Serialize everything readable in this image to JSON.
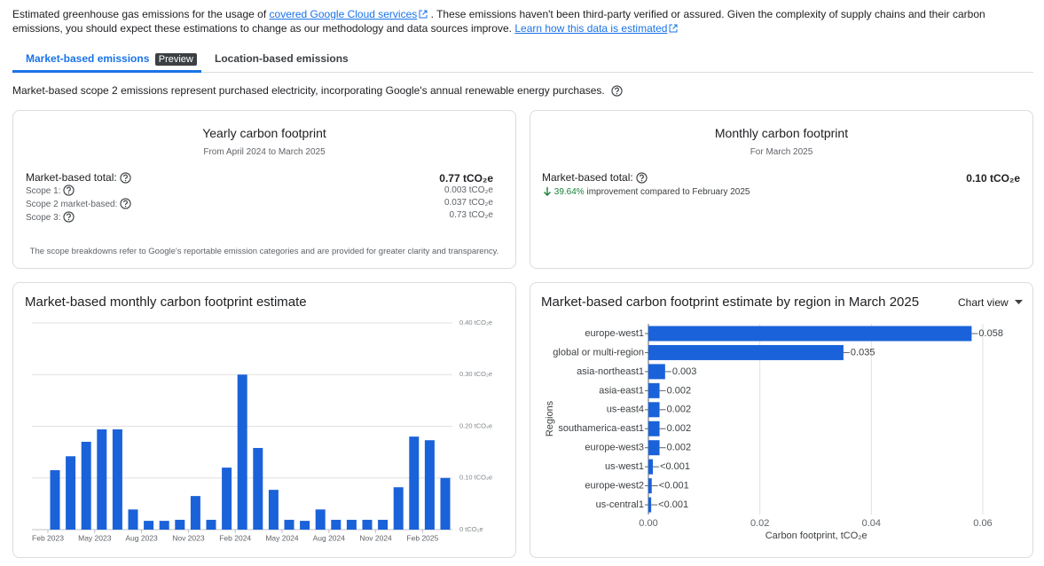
{
  "intro": {
    "text_1": "Estimated greenhouse gas emissions for the usage of",
    "link_1": "covered Google Cloud services",
    "text_2": ". These emissions haven't been third-party verified or assured. Given the complexity of supply chains and their carbon emissions, you should expect these estimations to change as our methodology and data sources improve.",
    "link_2": "Learn how this data is estimated"
  },
  "tabs": [
    {
      "label": "Market-based emissions",
      "badge": "Preview"
    },
    {
      "label": "Location-based emissions"
    }
  ],
  "description": "Market-based scope 2 emissions represent purchased electricity, incorporating Google's annual renewable energy purchases.",
  "yearly": {
    "title": "Yearly carbon footprint",
    "subtitle": "From April 2024 to March 2025",
    "total_label": "Market-based total:",
    "total_value": "0.77 tCO₂e",
    "rows": [
      {
        "label": "Scope 1:",
        "value": "0.003 tCO₂e"
      },
      {
        "label": "Scope 2 market-based:",
        "value": "0.037 tCO₂e"
      },
      {
        "label": "Scope 3:",
        "value": "0.73 tCO₂e"
      }
    ],
    "footnote": "The scope breakdowns refer to Google's reportable emission categories and are provided for greater clarity and transparency."
  },
  "monthly": {
    "title": "Monthly carbon footprint",
    "subtitle": "For March 2025",
    "total_label": "Market-based total:",
    "total_value": "0.10 tCO₂e",
    "change": "39.64%",
    "change_text": "improvement compared to February 2025"
  },
  "chart_view_button": "Chart view",
  "chart_data": [
    {
      "type": "bar",
      "title": "Market-based monthly carbon footprint estimate",
      "color": "#1a62d9",
      "grid": true,
      "categories": [
        "Feb 2023",
        null,
        null,
        "May 2023",
        null,
        null,
        "Aug 2023",
        null,
        null,
        "Nov 2023",
        null,
        null,
        "Feb 2024",
        null,
        null,
        "May 2024",
        null,
        null,
        "Aug 2024",
        null,
        null,
        "Nov 2024",
        null,
        null,
        "Feb 2025",
        null
      ],
      "values": [
        0.115,
        0.142,
        0.17,
        0.194,
        0.194,
        0.039,
        0.017,
        0.017,
        0.019,
        0.065,
        0.019,
        0.12,
        0.3,
        0.158,
        0.077,
        0.019,
        0.017,
        0.039,
        0.019,
        0.019,
        0.019,
        0.019,
        0.082,
        0.18,
        0.173,
        0.1
      ],
      "ylim": [
        0,
        0.4
      ],
      "yticks": [
        {
          "value": 0,
          "label": "0 tCO₂e"
        },
        {
          "value": 0.1,
          "label": "0.10 tCO₂e"
        },
        {
          "value": 0.2,
          "label": "0.20 tCO₂e"
        },
        {
          "value": 0.3,
          "label": "0.30 tCO₂e"
        },
        {
          "value": 0.4,
          "label": "0.40 tCO₂e"
        }
      ]
    },
    {
      "type": "barh",
      "title": "Market-based carbon footprint estimate by region in March 2025",
      "color": "#1a62d9",
      "grid": true,
      "y_label": "Regions",
      "x_label": "Carbon footprint, tCO₂e",
      "categories": [
        "europe-west1",
        "global or multi-region",
        "asia-northeast1",
        "asia-east1",
        "us-east4",
        "southamerica-east1",
        "europe-west3",
        "us-west1",
        "europe-west2",
        "us-central1"
      ],
      "values": [
        0.058,
        0.035,
        0.003,
        0.002,
        0.002,
        0.002,
        0.002,
        0.0008,
        0.0006,
        0.0005
      ],
      "value_labels": [
        "0.058",
        "0.035",
        "0.003",
        "0.002",
        "0.002",
        "0.002",
        "0.002",
        "<0.001",
        "<0.001",
        "<0.001"
      ],
      "xlim": [
        0,
        0.065
      ],
      "xticks": [
        {
          "value": 0,
          "label": "0.00"
        },
        0.02,
        0.04,
        0.06
      ]
    }
  ]
}
